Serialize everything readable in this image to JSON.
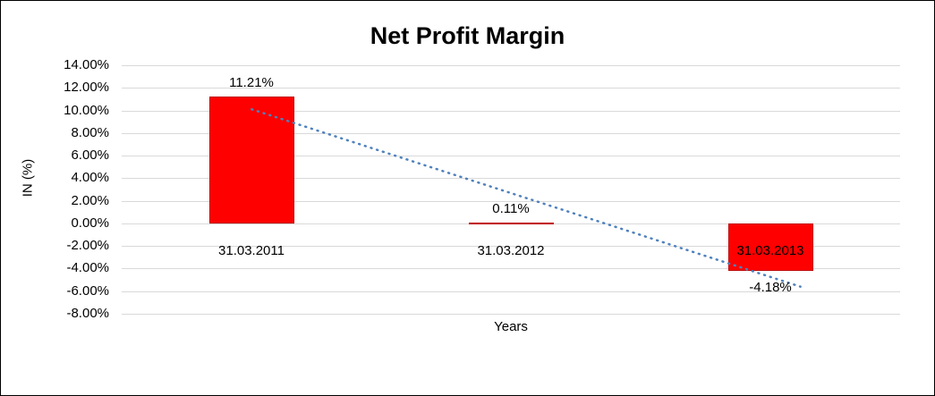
{
  "chart_data": {
    "type": "bar",
    "title": "Net Profit Margin",
    "xlabel": "Years",
    "ylabel": "IN (%)",
    "categories": [
      "31.03.2011",
      "31.03.2012",
      "31.03.2013"
    ],
    "values": [
      11.21,
      0.11,
      -4.18
    ],
    "data_labels": [
      "11.21%",
      "0.11%",
      "-4.18%"
    ],
    "ylim": [
      -8,
      14
    ],
    "ytick_step": 2,
    "ytick_labels": [
      "14.00%",
      "12.00%",
      "10.00%",
      "8.00%",
      "6.00%",
      "4.00%",
      "2.00%",
      "0.00%",
      "-2.00%",
      "-4.00%",
      "-6.00%",
      "-8.00%"
    ],
    "grid": true,
    "legend": "none",
    "bar_color": "#ff0000",
    "gridline_color": "#d9d9d9",
    "trendline": {
      "style": "dotted",
      "color": "#4f81bd",
      "x1_frac": 0.167,
      "y1_value": 10.1,
      "x2_frac": 0.872,
      "y2_value": -5.6
    }
  }
}
